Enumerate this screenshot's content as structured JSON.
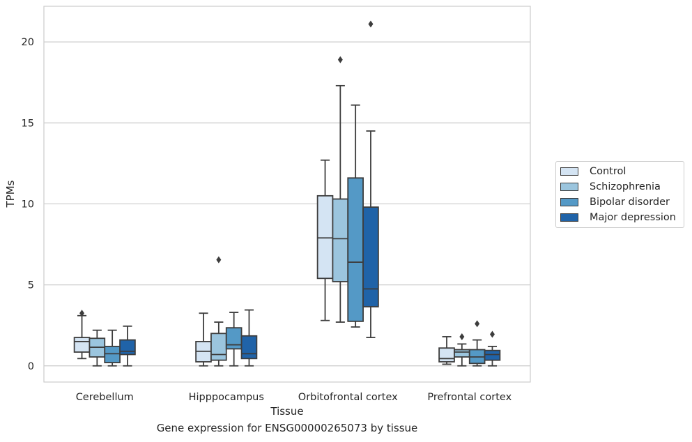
{
  "chart_data": {
    "type": "box",
    "xlabel": "Tissue",
    "ylabel": "TPMs",
    "ylim": [
      -1,
      22.2
    ],
    "yticks": [
      0,
      5,
      10,
      15,
      20
    ],
    "grid": "horizontal",
    "legend_position": "right",
    "categories": [
      "Cerebellum",
      "Hipppocampus",
      "Orbitofrontal cortex",
      "Prefrontal cortex"
    ],
    "series": [
      {
        "name": "Control",
        "color": "#d4e4f3",
        "boxes": [
          {
            "whisker_low": 0.45,
            "q1": 0.85,
            "median": 1.5,
            "q3": 1.75,
            "whisker_high": 3.1,
            "outliers": [
              3.25
            ]
          },
          {
            "whisker_low": 0.0,
            "q1": 0.25,
            "median": 0.9,
            "q3": 1.5,
            "whisker_high": 3.25,
            "outliers": []
          },
          {
            "whisker_low": 2.8,
            "q1": 5.4,
            "median": 7.9,
            "q3": 10.5,
            "whisker_high": 12.7,
            "outliers": []
          },
          {
            "whisker_low": 0.1,
            "q1": 0.25,
            "median": 0.45,
            "q3": 1.1,
            "whisker_high": 1.8,
            "outliers": []
          }
        ]
      },
      {
        "name": "Schizophrenia",
        "color": "#9bc5de",
        "boxes": [
          {
            "whisker_low": 0.0,
            "q1": 0.55,
            "median": 1.15,
            "q3": 1.7,
            "whisker_high": 2.2,
            "outliers": []
          },
          {
            "whisker_low": 0.0,
            "q1": 0.35,
            "median": 0.7,
            "q3": 2.0,
            "whisker_high": 2.7,
            "outliers": [
              6.55
            ]
          },
          {
            "whisker_low": 2.7,
            "q1": 5.2,
            "median": 7.85,
            "q3": 10.3,
            "whisker_high": 17.3,
            "outliers": [
              18.9
            ]
          },
          {
            "whisker_low": 0.0,
            "q1": 0.55,
            "median": 0.85,
            "q3": 1.0,
            "whisker_high": 1.35,
            "outliers": [
              1.8
            ]
          }
        ]
      },
      {
        "name": "Bipolar disorder",
        "color": "#5499c6",
        "boxes": [
          {
            "whisker_low": 0.0,
            "q1": 0.2,
            "median": 0.75,
            "q3": 1.2,
            "whisker_high": 2.2,
            "outliers": []
          },
          {
            "whisker_low": 0.0,
            "q1": 1.05,
            "median": 1.3,
            "q3": 2.35,
            "whisker_high": 3.3,
            "outliers": []
          },
          {
            "whisker_low": 2.4,
            "q1": 2.75,
            "median": 6.4,
            "q3": 11.6,
            "whisker_high": 16.1,
            "outliers": []
          },
          {
            "whisker_low": 0.0,
            "q1": 0.15,
            "median": 0.55,
            "q3": 1.0,
            "whisker_high": 1.6,
            "outliers": [
              2.6
            ]
          }
        ]
      },
      {
        "name": "Major depression",
        "color": "#2063a8",
        "boxes": [
          {
            "whisker_low": 0.0,
            "q1": 0.7,
            "median": 0.9,
            "q3": 1.6,
            "whisker_high": 2.45,
            "outliers": []
          },
          {
            "whisker_low": 0.0,
            "q1": 0.45,
            "median": 0.75,
            "q3": 1.85,
            "whisker_high": 3.45,
            "outliers": []
          },
          {
            "whisker_low": 1.75,
            "q1": 3.65,
            "median": 4.75,
            "q3": 9.8,
            "whisker_high": 14.5,
            "outliers": [
              21.1
            ]
          },
          {
            "whisker_low": 0.0,
            "q1": 0.35,
            "median": 0.7,
            "q3": 0.95,
            "whisker_high": 1.2,
            "outliers": [
              1.95
            ]
          }
        ]
      }
    ]
  },
  "caption": "Gene expression for ENSG00000265073 by tissue"
}
